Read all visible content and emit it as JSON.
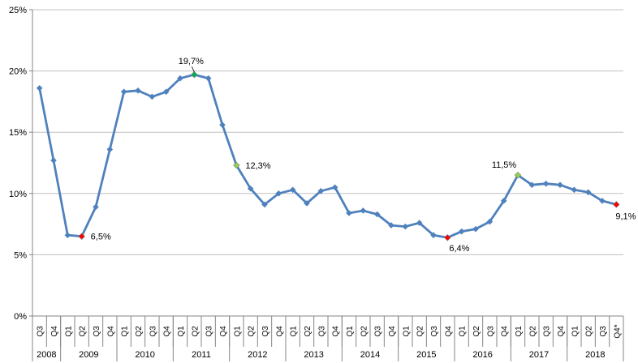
{
  "chart_data": {
    "type": "line",
    "title": "",
    "xlabel": "",
    "ylabel": "",
    "ylim": [
      0,
      25
    ],
    "y_ticks": [
      "0%",
      "5%",
      "10%",
      "15%",
      "20%",
      "25%"
    ],
    "grid": true,
    "legend": "none",
    "line_color": "#4F81BD",
    "quarters": [
      "Q3",
      "Q4",
      "Q1",
      "Q2",
      "Q3",
      "Q4",
      "Q1",
      "Q2",
      "Q3",
      "Q4",
      "Q1",
      "Q2",
      "Q3",
      "Q4",
      "Q1",
      "Q2",
      "Q3",
      "Q4",
      "Q1",
      "Q2",
      "Q3",
      "Q4",
      "Q1",
      "Q2",
      "Q3",
      "Q4",
      "Q1",
      "Q2",
      "Q3",
      "Q4",
      "Q1",
      "Q2",
      "Q3",
      "Q4",
      "Q1",
      "Q2",
      "Q3",
      "Q4",
      "Q1",
      "Q2",
      "Q3",
      "Q4*"
    ],
    "years": [
      {
        "label": "2008",
        "quarters": 2
      },
      {
        "label": "2009",
        "quarters": 4
      },
      {
        "label": "2010",
        "quarters": 4
      },
      {
        "label": "2011",
        "quarters": 4
      },
      {
        "label": "2012",
        "quarters": 4
      },
      {
        "label": "2013",
        "quarters": 4
      },
      {
        "label": "2014",
        "quarters": 4
      },
      {
        "label": "2015",
        "quarters": 4
      },
      {
        "label": "2016",
        "quarters": 4
      },
      {
        "label": "2017",
        "quarters": 4
      },
      {
        "label": "2018",
        "quarters": 4
      }
    ],
    "values": [
      18.6,
      12.7,
      6.6,
      6.5,
      8.9,
      13.6,
      18.3,
      18.4,
      17.9,
      18.3,
      19.4,
      19.7,
      19.4,
      15.6,
      12.3,
      10.4,
      9.1,
      10.0,
      10.3,
      9.2,
      10.2,
      10.5,
      8.4,
      8.6,
      8.3,
      7.4,
      7.3,
      7.6,
      6.6,
      6.4,
      6.9,
      7.1,
      7.7,
      9.4,
      11.5,
      10.7,
      10.8,
      10.7,
      10.3,
      10.1,
      9.4,
      9.1
    ],
    "highlights": [
      {
        "index": 3,
        "label": "6,5%",
        "color": "#FF0000"
      },
      {
        "index": 11,
        "label": "19,7%",
        "color": "#00B050"
      },
      {
        "index": 14,
        "label": "12,3%",
        "color": "#92D050"
      },
      {
        "index": 29,
        "label": "6,4%",
        "color": "#FF0000"
      },
      {
        "index": 34,
        "label": "11,5%",
        "color": "#92D050"
      },
      {
        "index": 41,
        "label": "9,1%",
        "color": "#FF0000"
      }
    ]
  }
}
